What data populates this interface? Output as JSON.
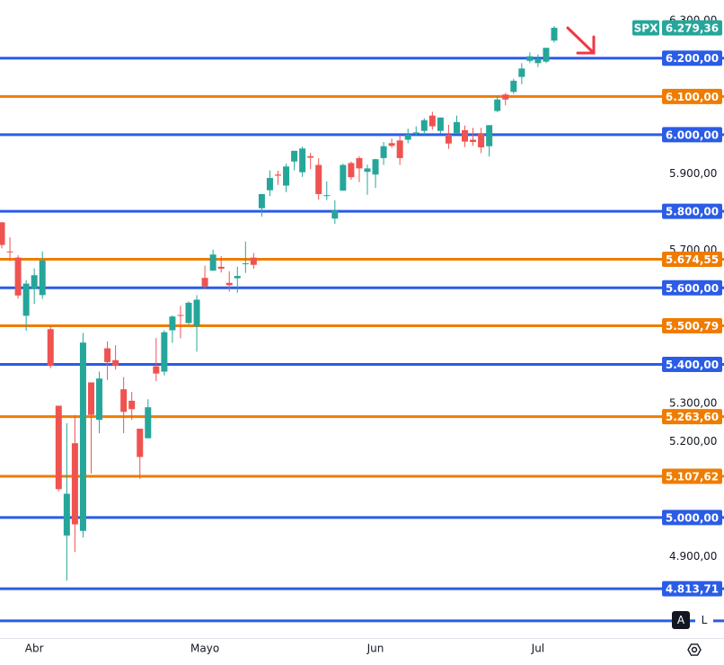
{
  "chart_data": {
    "type": "candlestick",
    "categories": [
      null,
      null,
      null,
      null,
      "Abr",
      null,
      null,
      null,
      null,
      null,
      null,
      null,
      null,
      null,
      null,
      null,
      null,
      null,
      null,
      null,
      null,
      null,
      null,
      null,
      null,
      "Mayo",
      null,
      null,
      null,
      null,
      null,
      null,
      null,
      null,
      null,
      null,
      null,
      null,
      null,
      null,
      null,
      null,
      null,
      null,
      null,
      null,
      "Jun",
      null,
      null,
      null,
      null,
      null,
      null,
      null,
      null,
      null,
      null,
      null,
      null,
      null,
      null,
      null,
      null,
      null,
      null,
      null,
      "Jul",
      null,
      null
    ],
    "open": [
      5771,
      5695,
      5679,
      5527,
      5597,
      5581,
      5492,
      5292,
      4953,
      5194,
      4965,
      5353,
      5255,
      5442,
      5411,
      5335,
      5305,
      5232,
      5207,
      5395,
      5381,
      5489,
      5529,
      5508,
      5499,
      5626,
      5645,
      5655,
      5613,
      5625,
      5663,
      5679,
      5808,
      5855,
      5896,
      5867,
      5930,
      5902,
      5944,
      5921,
      5841,
      5781,
      5854,
      5926,
      5939,
      5903,
      5896,
      5939,
      5978,
      5985,
      5987,
      6005,
      6010,
      6050,
      6010,
      6000,
      6004,
      6012,
      5987,
      6004,
      5970,
      6062,
      6105,
      6112,
      6151,
      6193,
      6187,
      6191,
      6246
    ],
    "high": [
      5772,
      5732,
      5685,
      5620,
      5651,
      5695,
      5500,
      5292,
      5246,
      5268,
      5482,
      5353,
      5381,
      5460,
      5450,
      5367,
      5328,
      5232,
      5309,
      5469,
      5489,
      5528,
      5553,
      5565,
      5581,
      5658,
      5700,
      5683,
      5643,
      5655,
      5721,
      5691,
      5845,
      5907,
      5906,
      5924,
      5958,
      5969,
      5953,
      5939,
      5878,
      5829,
      5924,
      5930,
      5944,
      5922,
      5937,
      5981,
      5990,
      5999,
      6016,
      6022,
      6043,
      6060,
      6045,
      6026,
      6050,
      6024,
      6018,
      6018,
      6025,
      6101,
      6109,
      6146,
      6187,
      6215,
      6210,
      6227,
      6284
    ],
    "low": [
      5703,
      5670,
      5572,
      5488,
      5558,
      5571,
      5390,
      5069,
      4835,
      4910,
      4948,
      5115,
      5220,
      5359,
      5386,
      5220,
      5255,
      5101,
      5207,
      5356,
      5371,
      5456,
      5468,
      5505,
      5433,
      5597,
      5644,
      5640,
      5590,
      5587,
      5639,
      5650,
      5786,
      5840,
      5869,
      5850,
      5907,
      5890,
      5910,
      5830,
      5829,
      5767,
      5854,
      5882,
      5876,
      5843,
      5861,
      5921,
      5966,
      5921,
      5978,
      5996,
      6000,
      6013,
      6003,
      5963,
      6004,
      5968,
      5971,
      5952,
      5943,
      6059,
      6077,
      6107,
      6132,
      6187,
      6177,
      6187,
      6241
    ],
    "close": [
      5712,
      5693,
      5580,
      5611,
      5633,
      5671,
      5396,
      5074,
      5062,
      4982,
      5457,
      5268,
      5363,
      5406,
      5396,
      5276,
      5283,
      5158,
      5288,
      5376,
      5484,
      5525,
      5528,
      5561,
      5569,
      5604,
      5687,
      5650,
      5607,
      5631,
      5664,
      5660,
      5845,
      5887,
      5893,
      5917,
      5958,
      5964,
      5940,
      5845,
      5842,
      5802,
      5921,
      5889,
      5912,
      5912,
      5936,
      5970,
      5971,
      5939,
      6000,
      6006,
      6038,
      6022,
      6045,
      5977,
      6033,
      5982,
      5981,
      5967,
      6025,
      6092,
      6092,
      6141,
      6173,
      6205,
      6199,
      6227,
      6279.36
    ],
    "up_color": "#26a69a",
    "down_color": "#ef5350",
    "ylim": [
      4685,
      6352
    ],
    "yticks": [
      {
        "value": 6300,
        "label": "6.300,00"
      },
      {
        "value": 5900,
        "label": "5.900,00"
      },
      {
        "value": 5700,
        "label": "5.700,00"
      },
      {
        "value": 5300,
        "label": "5.300,00"
      },
      {
        "value": 5200,
        "label": "5.200,00"
      },
      {
        "value": 4900,
        "label": "4.900,00"
      }
    ],
    "levels": [
      {
        "value": 6200,
        "label": "6.200,00",
        "color": "#2b5ce6"
      },
      {
        "value": 6100,
        "label": "6.100,00",
        "color": "#ef7c00"
      },
      {
        "value": 6000,
        "label": "6.000,00",
        "color": "#2b5ce6"
      },
      {
        "value": 5800,
        "label": "5.800,00",
        "color": "#2b5ce6"
      },
      {
        "value": 5674.55,
        "label": "5.674,55",
        "color": "#ef7c00"
      },
      {
        "value": 5600,
        "label": "5.600,00",
        "color": "#2b5ce6"
      },
      {
        "value": 5500.79,
        "label": "5.500,79",
        "color": "#ef7c00"
      },
      {
        "value": 5400,
        "label": "5.400,00",
        "color": "#2b5ce6"
      },
      {
        "value": 5263.6,
        "label": "5.263,60",
        "color": "#ef7c00"
      },
      {
        "value": 5107.62,
        "label": "5.107,62",
        "color": "#ef7c00"
      },
      {
        "value": 5000,
        "label": "5.000,00",
        "color": "#2b5ce6"
      },
      {
        "value": 4813.71,
        "label": "4.813,71",
        "color": "#2b5ce6"
      },
      {
        "value": 4730,
        "color": "#2b5ce6"
      }
    ],
    "last_price": {
      "name": "SPX",
      "label": "6.279,36",
      "color": "#26a69a"
    }
  },
  "ui": {
    "auto": "A",
    "log": "L"
  }
}
